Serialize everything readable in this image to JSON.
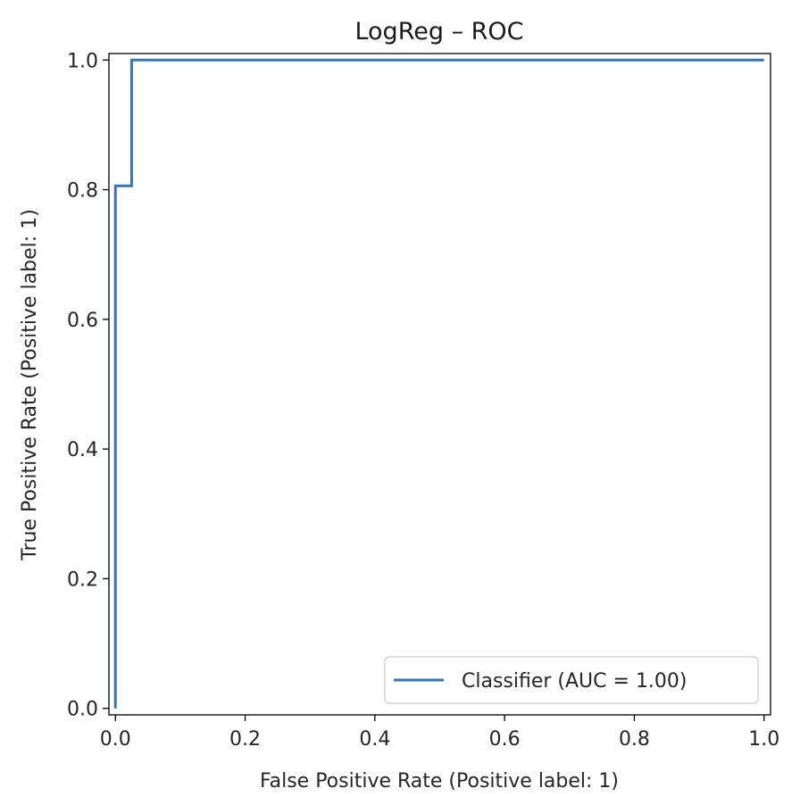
{
  "chart_data": {
    "type": "line",
    "title": "LogReg – ROC",
    "xlabel": "False Positive Rate (Positive label: 1)",
    "ylabel": "True Positive Rate (Positive label: 1)",
    "xlim": [
      -0.01,
      1.01
    ],
    "ylim": [
      -0.01,
      1.01
    ],
    "x_ticks": [
      0.0,
      0.2,
      0.4,
      0.6,
      0.8,
      1.0
    ],
    "y_ticks": [
      0.0,
      0.2,
      0.4,
      0.6,
      0.8,
      1.0
    ],
    "x_tick_labels": [
      "0.0",
      "0.2",
      "0.4",
      "0.6",
      "0.8",
      "1.0"
    ],
    "y_tick_labels": [
      "0.0",
      "0.2",
      "0.4",
      "0.6",
      "0.8",
      "1.0"
    ],
    "grid": false,
    "legend_position": "bottom-right",
    "series": [
      {
        "name": "Classifier (AUC = 1.00)",
        "color": "#3a75b0",
        "x": [
          0.0,
          0.0,
          0.0,
          0.025,
          0.025,
          1.0
        ],
        "y": [
          0.0,
          0.0,
          0.806,
          0.806,
          1.0,
          1.0
        ]
      }
    ]
  }
}
